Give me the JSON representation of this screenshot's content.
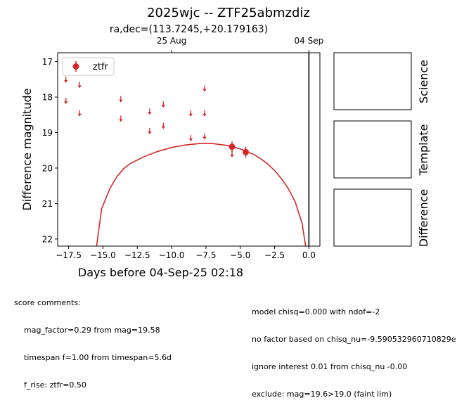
{
  "header": {
    "title": "2025wjc -- ZTF25abmzdiz",
    "subtitle": "ra,dec=(113.7245,+20.179163)"
  },
  "panels": {
    "science": "Science",
    "template": "Template",
    "difference": "Difference"
  },
  "comments": {
    "left_title": "score comments:",
    "left_lines": [
      "mag_factor=0.29 from mag=19.58",
      "timespan f=1.00 from timespan=5.6d",
      "f_rise: ztfr=0.50"
    ],
    "right_lines": [
      "model chisq=0.000 with ndof=-2",
      "no factor based on chisq_nu=-9.590532960710829e",
      "ignore interest 0.01 from chisq_nu -0.00",
      "exclude: mag=19.6>19.0 (faint lim)"
    ]
  },
  "chart_data": {
    "type": "scatter",
    "xlabel": "Days before 04-Sep-25 02:18",
    "ylabel": "Difference magnitude",
    "xlim": [
      -18.3,
      0.8
    ],
    "ylim": [
      22.2,
      16.75
    ],
    "y_inverted": true,
    "x_ticks": [
      -17.5,
      -15.0,
      -12.5,
      -10.0,
      -7.5,
      -5.0,
      -2.5,
      0.0
    ],
    "x_tick_labels": [
      "−17.5",
      "−15.0",
      "−12.5",
      "−10.0",
      "−7.5",
      "−5.0",
      "−2.5",
      "0.0"
    ],
    "y_ticks": [
      17,
      18,
      19,
      20,
      21,
      22
    ],
    "top_axis_ticks": [
      {
        "x": -10.0,
        "label": "25 Aug"
      },
      {
        "x": 0.0,
        "label": "04 Sep"
      }
    ],
    "vline_x": 0.0,
    "legend": {
      "label": "ztfr",
      "placement": "upper left"
    },
    "color": "#d62728",
    "detections": [
      {
        "x": -5.6,
        "y": 19.4,
        "err": 0.15
      },
      {
        "x": -4.6,
        "y": 19.55,
        "err": 0.15
      }
    ],
    "upper_limits": [
      {
        "x": -17.7,
        "y": 17.5
      },
      {
        "x": -17.7,
        "y": 18.1
      },
      {
        "x": -16.7,
        "y": 17.65
      },
      {
        "x": -16.7,
        "y": 18.45
      },
      {
        "x": -13.7,
        "y": 18.05
      },
      {
        "x": -13.7,
        "y": 18.6
      },
      {
        "x": -11.6,
        "y": 18.4
      },
      {
        "x": -11.6,
        "y": 18.95
      },
      {
        "x": -10.6,
        "y": 18.2
      },
      {
        "x": -10.6,
        "y": 18.8
      },
      {
        "x": -8.6,
        "y": 18.45
      },
      {
        "x": -8.6,
        "y": 19.15
      },
      {
        "x": -7.6,
        "y": 17.75
      },
      {
        "x": -7.6,
        "y": 18.45
      },
      {
        "x": -7.6,
        "y": 19.1
      },
      {
        "x": -5.6,
        "y": 19.6
      }
    ],
    "model_curve": [
      [
        -15.5,
        22.3
      ],
      [
        -15.1,
        21.15
      ],
      [
        -14.5,
        20.58
      ],
      [
        -14.0,
        20.25
      ],
      [
        -13.5,
        20.02
      ],
      [
        -13.0,
        19.87
      ],
      [
        -12.0,
        19.68
      ],
      [
        -11.0,
        19.53
      ],
      [
        -10.0,
        19.42
      ],
      [
        -9.0,
        19.35
      ],
      [
        -8.0,
        19.31
      ],
      [
        -7.5,
        19.3
      ],
      [
        -7.0,
        19.31
      ],
      [
        -6.0,
        19.36
      ],
      [
        -5.0,
        19.46
      ],
      [
        -4.0,
        19.62
      ],
      [
        -3.5,
        19.74
      ],
      [
        -3.0,
        19.89
      ],
      [
        -2.5,
        20.07
      ],
      [
        -2.0,
        20.3
      ],
      [
        -1.5,
        20.58
      ],
      [
        -1.0,
        20.95
      ],
      [
        -0.5,
        21.55
      ],
      [
        -0.2,
        22.3
      ]
    ]
  }
}
